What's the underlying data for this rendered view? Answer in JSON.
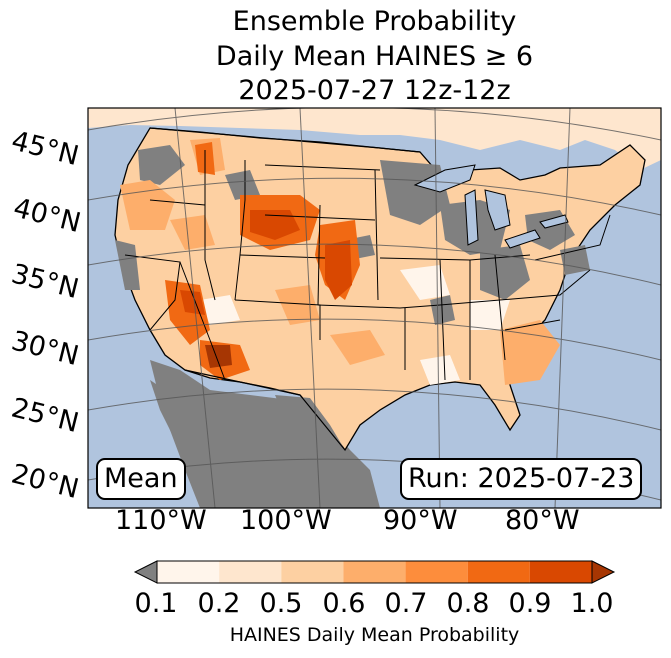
{
  "title": {
    "line1": "Ensemble Probability",
    "line2": "Daily Mean HAINES ≥ 6",
    "line3": "2025-07-27 12z-12z"
  },
  "map": {
    "region": "Contiguous United States",
    "lat_labels": [
      "45°N",
      "40°N",
      "35°N",
      "30°N",
      "25°N",
      "20°N"
    ],
    "lon_labels": [
      "110°W",
      "100°W",
      "90°W",
      "80°W"
    ],
    "mean_label": "Mean",
    "run_label": "Run: 2025-07-23",
    "ocean_color": "#b0c4de",
    "no_data_color": "#808080"
  },
  "colorbar": {
    "ticks": [
      "0.1",
      "0.2",
      "0.5",
      "0.6",
      "0.7",
      "0.8",
      "0.9",
      "1.0"
    ],
    "colors": [
      "#fff5eb",
      "#fee6ce",
      "#fdd0a2",
      "#fdae6b",
      "#fd8d3c",
      "#f16913",
      "#d94801",
      "#a63603"
    ],
    "under_color": "#808080",
    "label": "HAINES Daily Mean Probability"
  }
}
